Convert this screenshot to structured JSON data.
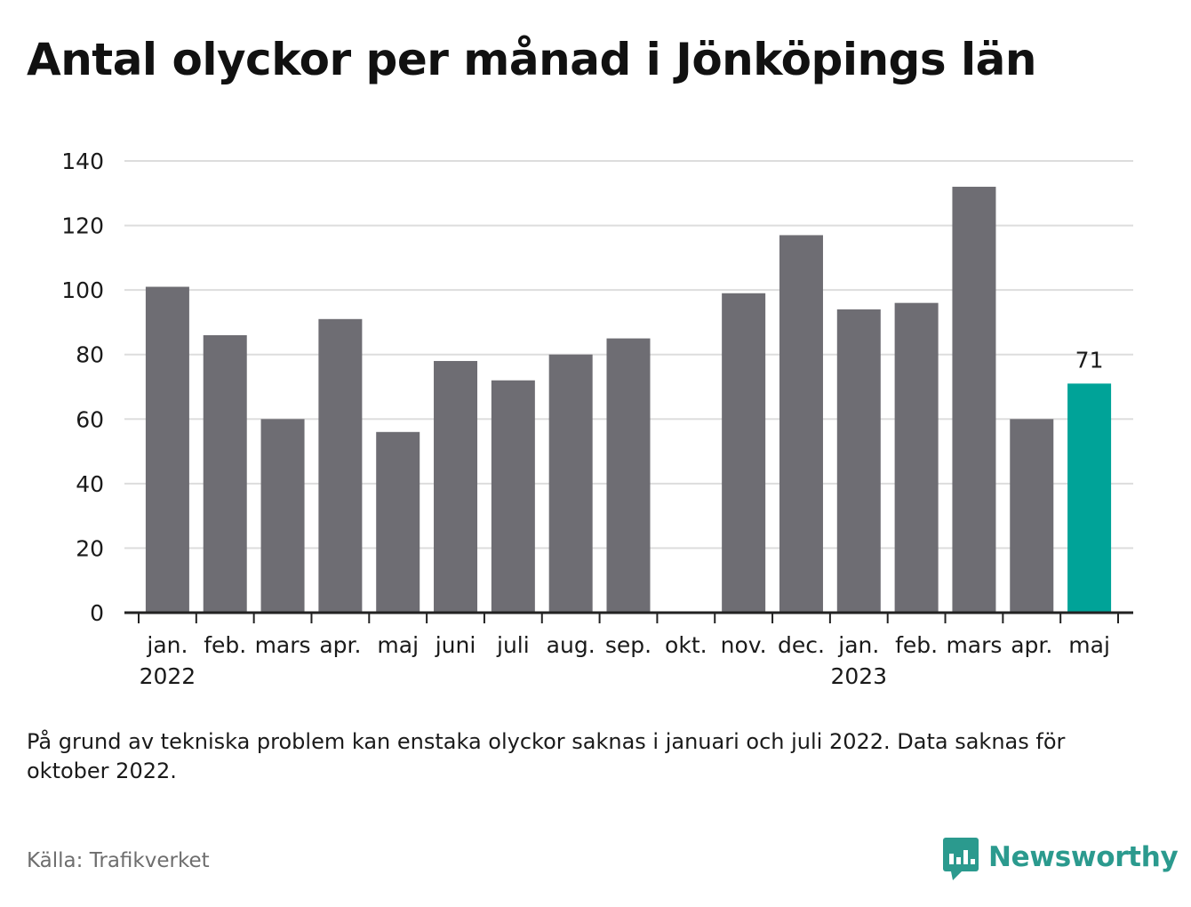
{
  "title": "Antal olyckor per månad i Jönköpings län",
  "note": "På grund av tekniska problem kan enstaka olyckor saknas i januari och juli 2022. Data saknas för oktober 2022.",
  "source": "Källa: Trafikverket",
  "brand": {
    "name": "Newsworthy",
    "icon": "newsworthy-logo-icon",
    "color": "#2b9a8e"
  },
  "chart_data": {
    "type": "bar",
    "title": "Antal olyckor per månad i Jönköpings län",
    "categories": [
      "jan.",
      "feb.",
      "mars",
      "apr.",
      "maj",
      "juni",
      "juli",
      "aug.",
      "sep.",
      "okt.",
      "nov.",
      "dec.",
      "jan.",
      "feb.",
      "mars",
      "apr.",
      "maj"
    ],
    "year_labels": [
      {
        "index": 0,
        "label": "2022"
      },
      {
        "index": 12,
        "label": "2023"
      }
    ],
    "values": [
      101,
      86,
      60,
      91,
      56,
      78,
      72,
      80,
      85,
      null,
      99,
      117,
      94,
      96,
      132,
      60,
      71
    ],
    "highlight_index": 16,
    "highlight_label": "71",
    "ylim": [
      0,
      140
    ],
    "yticks": [
      0,
      20,
      40,
      60,
      80,
      100,
      120,
      140
    ],
    "xlabel": "",
    "ylabel": "",
    "grid": true,
    "colors": {
      "bar": "#6e6d73",
      "highlight": "#00a398",
      "grid": "#dddddd",
      "axis": "#222222"
    }
  }
}
